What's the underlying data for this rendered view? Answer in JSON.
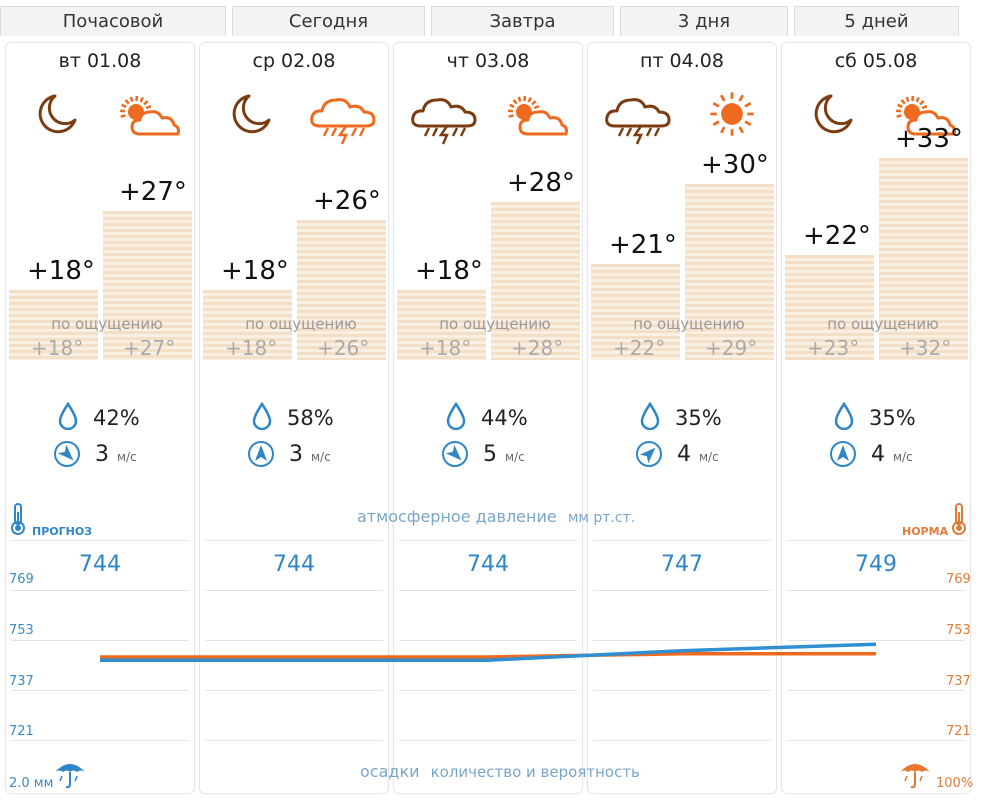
{
  "tabs": [
    "Почасовой",
    "Сегодня",
    "Завтра",
    "3 дня",
    "5 дней"
  ],
  "days": [
    {
      "date": "вт 01.08",
      "night_icon": "moon-icon",
      "day_icon": "sun-cloud-icon",
      "temp_night": "+18°",
      "temp_day": "+27°",
      "t_night": 18,
      "t_day": 27,
      "feel_label": "по ощущению",
      "feel_night": "+18°",
      "feel_day": "+27°",
      "humidity": "42%",
      "wind": "3",
      "wind_unit": "м/с",
      "wind_dir": 135,
      "pressure": "744"
    },
    {
      "date": "ср 02.08",
      "night_icon": "moon-icon",
      "day_icon": "thunderstorm-cloud-icon",
      "temp_night": "+18°",
      "temp_day": "+26°",
      "t_night": 18,
      "t_day": 26,
      "feel_label": "по ощущению",
      "feel_night": "+18°",
      "feel_day": "+26°",
      "humidity": "58%",
      "wind": "3",
      "wind_unit": "м/с",
      "wind_dir": 0,
      "pressure": "744"
    },
    {
      "date": "чт 03.08",
      "night_icon": "thunderstorm-cloud-icon",
      "day_icon": "sun-cloud-icon",
      "temp_night": "+18°",
      "temp_day": "+28°",
      "t_night": 18,
      "t_day": 28,
      "feel_label": "по ощущению",
      "feel_night": "+18°",
      "feel_day": "+28°",
      "humidity": "44%",
      "wind": "5",
      "wind_unit": "м/с",
      "wind_dir": 135,
      "pressure": "744"
    },
    {
      "date": "пт 04.08",
      "night_icon": "thunderstorm-cloud-icon",
      "day_icon": "sun-icon",
      "temp_night": "+21°",
      "temp_day": "+30°",
      "t_night": 21,
      "t_day": 30,
      "feel_label": "по ощущению",
      "feel_night": "+22°",
      "feel_day": "+29°",
      "humidity": "35%",
      "wind": "4",
      "wind_unit": "м/с",
      "wind_dir": 45,
      "pressure": "747"
    },
    {
      "date": "сб 05.08",
      "night_icon": "moon-icon",
      "day_icon": "sun-cloud-icon",
      "temp_night": "+22°",
      "temp_day": "+33°",
      "t_night": 22,
      "t_day": 33,
      "feel_label": "по ощущению",
      "feel_night": "+23°",
      "feel_day": "+32°",
      "humidity": "35%",
      "wind": "4",
      "wind_unit": "м/с",
      "wind_dir": 0,
      "pressure": "749"
    }
  ],
  "pressure": {
    "label": "атмосферное давление",
    "unit": "мм рт.ст.",
    "legend_left": "ПРОГНОЗ",
    "legend_right": "НОРМА",
    "ticks": [
      "769",
      "753",
      "737",
      "721"
    ],
    "forecast": [
      744,
      744,
      744,
      747,
      749
    ],
    "norm": [
      745,
      745,
      745,
      746,
      746
    ],
    "color_forecast": "#2f8fd0",
    "color_norm": "#ee6a1e"
  },
  "precip": {
    "label": "осадки",
    "sublabel": "количество и вероятность",
    "left": "2.0 мм",
    "right": "100%"
  },
  "colors": {
    "accent_orange": "#ee7a22",
    "moon_brown": "#7a3c10",
    "blue": "#2f86c6"
  }
}
